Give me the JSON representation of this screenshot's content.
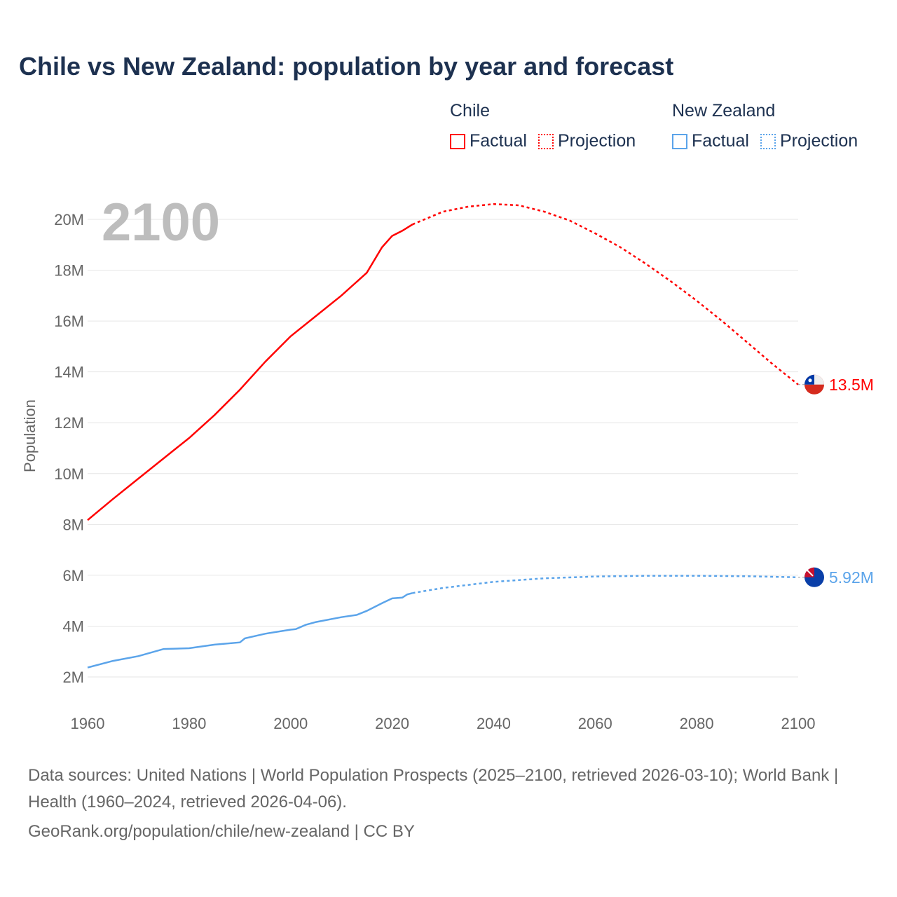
{
  "title": "Chile vs New Zealand: population by year and forecast",
  "legend": [
    {
      "group": "Chile",
      "factual": "Factual",
      "projection": "Projection",
      "color": "#ff0000"
    },
    {
      "group": "New Zealand",
      "factual": "Factual",
      "projection": "Projection",
      "color": "#5ba4ea"
    }
  ],
  "chart_data": {
    "type": "line",
    "title": "Chile vs New Zealand: population by year and forecast",
    "year_label": "2100",
    "xlabel": "",
    "ylabel": "Population",
    "xlim": [
      1960,
      2100
    ],
    "ylim": [
      2000000,
      20000000
    ],
    "x_ticks": [
      "1960",
      "1980",
      "2000",
      "2020",
      "2040",
      "2060",
      "2080",
      "2100"
    ],
    "y_ticks": [
      "2M",
      "4M",
      "6M",
      "8M",
      "10M",
      "12M",
      "14M",
      "16M",
      "18M",
      "20M"
    ],
    "grid": true,
    "series": [
      {
        "name": "Chile",
        "color": "#ff0000",
        "end_label": "13.5M",
        "factual": [
          [
            1960,
            8.17
          ],
          [
            1965,
            9.0
          ],
          [
            1970,
            9.8
          ],
          [
            1975,
            10.6
          ],
          [
            1980,
            11.4
          ],
          [
            1985,
            12.3
          ],
          [
            1990,
            13.3
          ],
          [
            1995,
            14.4
          ],
          [
            2000,
            15.4
          ],
          [
            2005,
            16.2
          ],
          [
            2010,
            17.0
          ],
          [
            2015,
            17.9
          ],
          [
            2018,
            18.9
          ],
          [
            2020,
            19.35
          ],
          [
            2022,
            19.55
          ],
          [
            2024,
            19.8
          ]
        ],
        "projection": [
          [
            2024,
            19.8
          ],
          [
            2030,
            20.3
          ],
          [
            2035,
            20.5
          ],
          [
            2040,
            20.6
          ],
          [
            2045,
            20.55
          ],
          [
            2050,
            20.3
          ],
          [
            2055,
            19.95
          ],
          [
            2060,
            19.45
          ],
          [
            2065,
            18.9
          ],
          [
            2070,
            18.25
          ],
          [
            2075,
            17.55
          ],
          [
            2080,
            16.8
          ],
          [
            2085,
            16.0
          ],
          [
            2090,
            15.15
          ],
          [
            2095,
            14.3
          ],
          [
            2100,
            13.5
          ]
        ]
      },
      {
        "name": "New Zealand",
        "color": "#5ba4ea",
        "end_label": "5.92M",
        "factual": [
          [
            1960,
            2.37
          ],
          [
            1965,
            2.63
          ],
          [
            1970,
            2.82
          ],
          [
            1975,
            3.1
          ],
          [
            1980,
            3.13
          ],
          [
            1985,
            3.27
          ],
          [
            1990,
            3.36
          ],
          [
            1991,
            3.52
          ],
          [
            1995,
            3.7
          ],
          [
            2000,
            3.86
          ],
          [
            2001,
            3.88
          ],
          [
            2003,
            4.05
          ],
          [
            2005,
            4.16
          ],
          [
            2010,
            4.35
          ],
          [
            2013,
            4.44
          ],
          [
            2015,
            4.6
          ],
          [
            2018,
            4.9
          ],
          [
            2020,
            5.09
          ],
          [
            2022,
            5.12
          ],
          [
            2023,
            5.25
          ],
          [
            2024,
            5.3
          ]
        ],
        "projection": [
          [
            2024,
            5.3
          ],
          [
            2030,
            5.5
          ],
          [
            2040,
            5.74
          ],
          [
            2050,
            5.88
          ],
          [
            2060,
            5.95
          ],
          [
            2070,
            5.98
          ],
          [
            2080,
            5.98
          ],
          [
            2090,
            5.96
          ],
          [
            2100,
            5.92
          ]
        ]
      }
    ]
  },
  "footer": {
    "sources": "Data sources: United Nations | World Population Prospects (2025–2100, retrieved 2026-03-10); World Bank | Health (1960–2024, retrieved 2026-04-06).",
    "credit": "GeoRank.org/population/chile/new-zealand | CC BY"
  }
}
